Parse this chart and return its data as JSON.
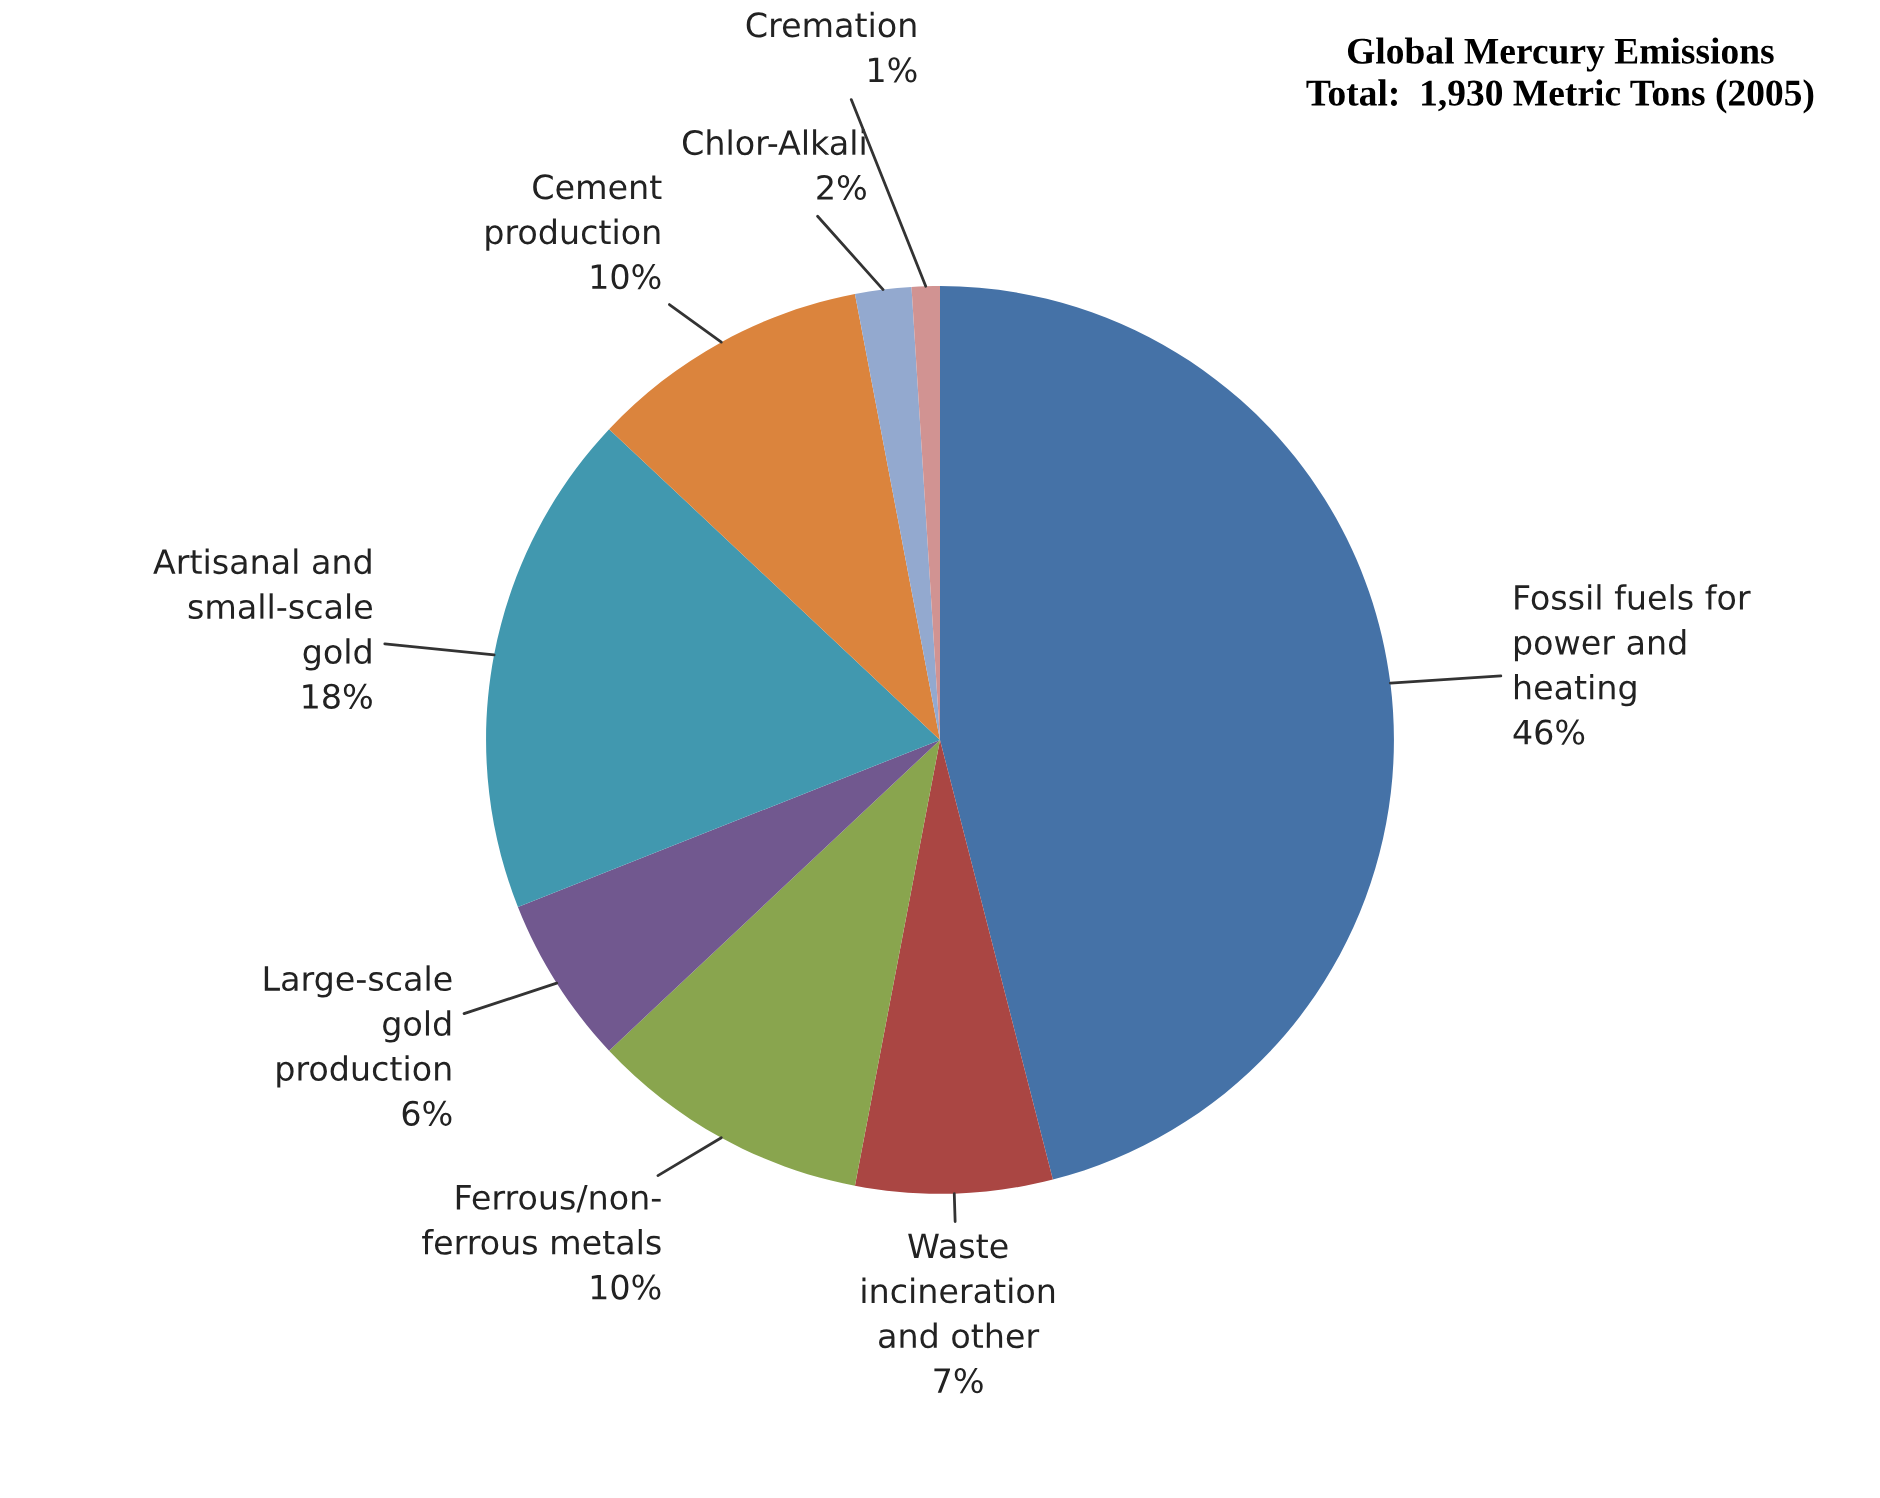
{
  "chart_data": {
    "type": "pie",
    "title": "Global Mercury Emissions\nTotal:  1,930 Metric Tons (2005)",
    "categories": [
      "Fossil fuels for\npower and\nheating",
      "Waste\nincineration\nand other",
      "Ferrous/non-\nferrous metals",
      "Large-scale\ngold\nproduction",
      "Artisanal and\nsmall-scale\ngold",
      "Cement\nproduction",
      "Chlor-Alkali",
      "Cremation"
    ],
    "values": [
      46,
      7,
      10,
      6,
      18,
      10,
      2,
      1
    ],
    "value_labels": [
      "46%",
      "7%",
      "10%",
      "6%",
      "18%",
      "10%",
      "2%",
      "1%"
    ],
    "colors": [
      "#4572a7",
      "#aa4643",
      "#89a54e",
      "#71588f",
      "#4198af",
      "#db843d",
      "#93a9cf",
      "#d19392"
    ],
    "legend": false
  }
}
